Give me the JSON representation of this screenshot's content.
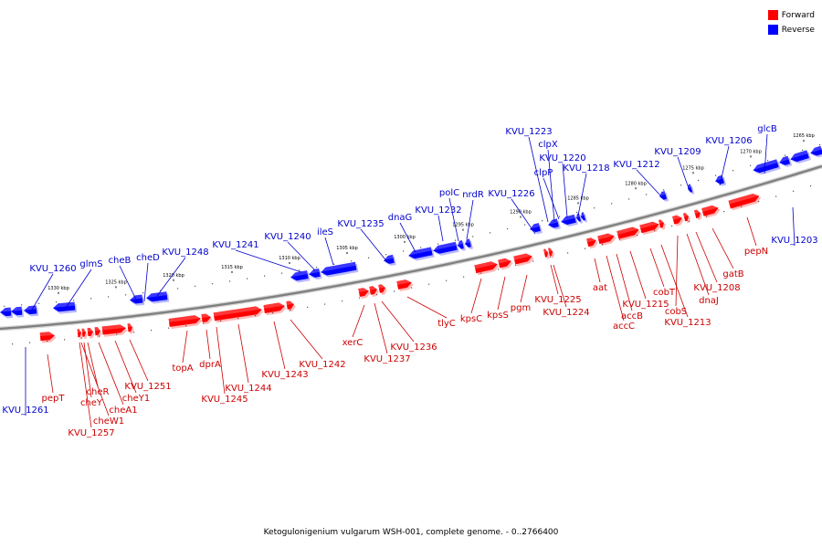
{
  "caption": "Ketogulonigenium vulgarum WSH-001, complete genome. - 0..2766400",
  "legend": {
    "items": [
      {
        "label": "Forward",
        "color": "#ff0000"
      },
      {
        "label": "Reverse",
        "color": "#0000ff"
      }
    ]
  },
  "colors": {
    "forward": "#ff0000",
    "reverse": "#0000ff",
    "label_forward": "#cc0000",
    "label_reverse": "#0000cc",
    "backbone": "#808080"
  },
  "scale": {
    "ticks": [
      {
        "label": "1330 kbp",
        "kbp": 1330
      },
      {
        "label": "1325 kbp",
        "kbp": 1325
      },
      {
        "label": "1320 kbp",
        "kbp": 1320
      },
      {
        "label": "1315 kbp",
        "kbp": 1315
      },
      {
        "label": "1310 kbp",
        "kbp": 1310
      },
      {
        "label": "1305 kbp",
        "kbp": 1305
      },
      {
        "label": "1300 kbp",
        "kbp": 1300
      },
      {
        "label": "1295 kbp",
        "kbp": 1295
      },
      {
        "label": "1290 kbp",
        "kbp": 1290
      },
      {
        "label": "1285 kbp",
        "kbp": 1285
      },
      {
        "label": "1280 kbp",
        "kbp": 1280
      },
      {
        "label": "1275 kbp",
        "kbp": 1275
      },
      {
        "label": "1270 kbp",
        "kbp": 1270
      },
      {
        "label": "1265 kbp",
        "kbp": 1265
      }
    ]
  },
  "reverse_labels": [
    "KVU_1260",
    "glmS",
    "cheB",
    "cheD",
    "KVU_1248",
    "KVU_1241",
    "KVU_1240",
    "ileS",
    "KVU_1235",
    "dnaG",
    "KVU_1232",
    "polC",
    "nrdR",
    "KVU_1226",
    "KVU_1223",
    "clpX",
    "clpP",
    "KVU_1220",
    "KVU_1218",
    "KVU_1212",
    "KVU_1209",
    "KVU_1206",
    "glcB",
    "KVU_1261",
    "KVU_1203"
  ],
  "forward_labels": [
    "pepT",
    "cheR",
    "cheY",
    "cheW1",
    "KVU_1257",
    "cheA1",
    "cheY1",
    "KVU_1251",
    "topA",
    "dprA",
    "KVU_1245",
    "KVU_1244",
    "KVU_1243",
    "KVU_1242",
    "xerC",
    "KVU_1237",
    "KVU_1236",
    "tlyC",
    "kpsC",
    "kpsS",
    "pgm",
    "KVU_1225",
    "KVU_1224",
    "aat",
    "accC",
    "accB",
    "KVU_1215",
    "cobT",
    "KVU_1213",
    "cobS",
    "dnaJ",
    "KVU_1208",
    "gatB",
    "pepN"
  ]
}
